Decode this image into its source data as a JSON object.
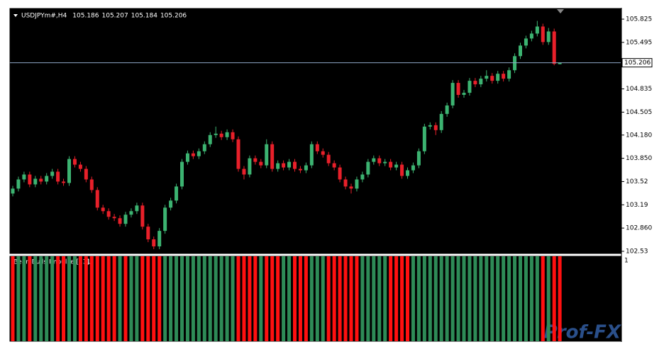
{
  "chart_data": {
    "type": "candlestick",
    "symbol": "USDJPYm#,H4",
    "ohlc": [
      [
        103.35,
        103.46,
        103.31,
        103.42
      ],
      [
        103.42,
        103.59,
        103.38,
        103.55
      ],
      [
        103.55,
        103.66,
        103.51,
        103.62
      ],
      [
        103.62,
        103.66,
        103.44,
        103.48
      ],
      [
        103.48,
        103.6,
        103.44,
        103.56
      ],
      [
        103.56,
        103.6,
        103.48,
        103.52
      ],
      [
        103.52,
        103.64,
        103.48,
        103.6
      ],
      [
        103.6,
        103.7,
        103.56,
        103.66
      ],
      [
        103.66,
        103.7,
        103.48,
        103.52
      ],
      [
        103.52,
        103.56,
        103.46,
        103.5
      ],
      [
        103.5,
        103.88,
        103.46,
        103.84
      ],
      [
        103.84,
        103.88,
        103.72,
        103.76
      ],
      [
        103.76,
        103.8,
        103.66,
        103.7
      ],
      [
        103.7,
        103.74,
        103.51,
        103.55
      ],
      [
        103.55,
        103.59,
        103.36,
        103.4
      ],
      [
        103.4,
        103.44,
        103.11,
        103.15
      ],
      [
        103.15,
        103.19,
        103.06,
        103.1
      ],
      [
        103.1,
        103.14,
        102.98,
        103.02
      ],
      [
        103.02,
        103.06,
        102.96,
        103.0
      ],
      [
        103.0,
        103.04,
        102.88,
        102.92
      ],
      [
        102.92,
        103.09,
        102.88,
        103.05
      ],
      [
        103.05,
        103.14,
        103.01,
        103.1
      ],
      [
        103.1,
        103.22,
        103.06,
        103.18
      ],
      [
        103.18,
        103.22,
        102.84,
        102.88
      ],
      [
        102.88,
        102.92,
        102.66,
        102.7
      ],
      [
        102.7,
        102.74,
        102.56,
        102.6
      ],
      [
        102.6,
        102.86,
        102.56,
        102.82
      ],
      [
        102.82,
        103.19,
        102.78,
        103.15
      ],
      [
        103.15,
        103.29,
        103.11,
        103.25
      ],
      [
        103.25,
        103.49,
        103.21,
        103.45
      ],
      [
        103.45,
        103.84,
        103.41,
        103.8
      ],
      [
        103.8,
        103.96,
        103.76,
        103.92
      ],
      [
        103.92,
        103.96,
        103.84,
        103.88
      ],
      [
        103.88,
        103.99,
        103.84,
        103.95
      ],
      [
        103.95,
        104.09,
        103.91,
        104.05
      ],
      [
        104.05,
        104.22,
        104.01,
        104.18
      ],
      [
        104.18,
        104.3,
        104.14,
        104.2
      ],
      [
        104.2,
        104.24,
        104.11,
        104.15
      ],
      [
        104.15,
        104.26,
        104.11,
        104.22
      ],
      [
        104.22,
        104.26,
        104.08,
        104.12
      ],
      [
        104.12,
        104.16,
        103.66,
        103.7
      ],
      [
        103.7,
        103.74,
        103.55,
        103.62
      ],
      [
        103.62,
        103.89,
        103.58,
        103.85
      ],
      [
        103.85,
        103.89,
        103.76,
        103.8
      ],
      [
        103.8,
        103.84,
        103.71,
        103.75
      ],
      [
        103.75,
        104.12,
        103.71,
        104.05
      ],
      [
        104.05,
        104.09,
        103.66,
        103.7
      ],
      [
        103.7,
        103.82,
        103.66,
        103.78
      ],
      [
        103.78,
        103.82,
        103.68,
        103.72
      ],
      [
        103.72,
        103.84,
        103.68,
        103.8
      ],
      [
        103.8,
        103.84,
        103.66,
        103.7
      ],
      [
        103.7,
        103.74,
        103.64,
        103.68
      ],
      [
        103.68,
        103.79,
        103.64,
        103.75
      ],
      [
        103.75,
        104.09,
        103.71,
        104.05
      ],
      [
        104.05,
        104.09,
        103.91,
        103.95
      ],
      [
        103.95,
        103.99,
        103.86,
        103.9
      ],
      [
        103.9,
        103.94,
        103.74,
        103.78
      ],
      [
        103.78,
        103.82,
        103.68,
        103.72
      ],
      [
        103.72,
        103.76,
        103.51,
        103.55
      ],
      [
        103.55,
        103.59,
        103.41,
        103.45
      ],
      [
        103.45,
        103.49,
        103.35,
        103.42
      ],
      [
        103.42,
        103.59,
        103.38,
        103.55
      ],
      [
        103.55,
        103.66,
        103.51,
        103.62
      ],
      [
        103.62,
        103.84,
        103.58,
        103.8
      ],
      [
        103.8,
        103.89,
        103.76,
        103.85
      ],
      [
        103.85,
        103.89,
        103.74,
        103.78
      ],
      [
        103.78,
        103.84,
        103.74,
        103.8
      ],
      [
        103.8,
        103.84,
        103.68,
        103.72
      ],
      [
        103.72,
        103.8,
        103.68,
        103.76
      ],
      [
        103.76,
        103.8,
        103.56,
        103.6
      ],
      [
        103.6,
        103.72,
        103.56,
        103.68
      ],
      [
        103.68,
        103.79,
        103.64,
        103.75
      ],
      [
        103.75,
        103.99,
        103.71,
        103.95
      ],
      [
        103.95,
        104.34,
        103.91,
        104.3
      ],
      [
        104.3,
        104.36,
        104.26,
        104.32
      ],
      [
        104.32,
        104.36,
        104.18,
        104.25
      ],
      [
        104.25,
        104.52,
        104.21,
        104.48
      ],
      [
        104.48,
        104.64,
        104.44,
        104.6
      ],
      [
        104.6,
        104.96,
        104.56,
        104.92
      ],
      [
        104.92,
        104.96,
        104.71,
        104.75
      ],
      [
        104.75,
        104.82,
        104.71,
        104.78
      ],
      [
        104.78,
        104.99,
        104.74,
        104.95
      ],
      [
        104.95,
        104.99,
        104.86,
        104.9
      ],
      [
        104.9,
        105.02,
        104.86,
        104.98
      ],
      [
        104.98,
        105.1,
        104.94,
        105.02
      ],
      [
        105.02,
        105.06,
        104.91,
        104.95
      ],
      [
        104.95,
        105.09,
        104.91,
        105.05
      ],
      [
        105.05,
        105.09,
        104.94,
        104.98
      ],
      [
        104.98,
        105.14,
        104.94,
        105.1
      ],
      [
        105.1,
        105.34,
        105.06,
        105.3
      ],
      [
        105.3,
        105.49,
        105.26,
        105.45
      ],
      [
        105.45,
        105.59,
        105.41,
        105.55
      ],
      [
        105.55,
        105.66,
        105.51,
        105.62
      ],
      [
        105.62,
        105.8,
        105.58,
        105.72
      ],
      [
        105.72,
        105.76,
        105.46,
        105.5
      ],
      [
        105.5,
        105.7,
        105.46,
        105.65
      ],
      [
        105.65,
        105.69,
        105.17,
        105.19
      ],
      [
        105.186,
        105.207,
        105.184,
        105.206
      ]
    ],
    "up_color": "#3cb371",
    "down_color": "#e8202a",
    "ylim": [
      102.5,
      105.976
    ],
    "yticks": [
      105.825,
      105.495,
      104.835,
      104.505,
      {
        "value": 104.18,
        "label": "104.180"
      },
      {
        "value": 103.85,
        "label": "103.850"
      },
      103.52,
      103.19,
      {
        "value": 102.86,
        "label": "102.860"
      },
      102.53
    ],
    "indicator": {
      "name": "BearsBulls Impulse [13]",
      "level_label": "1",
      "axis_label": "1",
      "ylim": [
        0,
        1
      ],
      "values": [
        1,
        1,
        1,
        1,
        1,
        1,
        1,
        1,
        1,
        1,
        1,
        1,
        1,
        1,
        1,
        1,
        1,
        1,
        1,
        1,
        1,
        1,
        1,
        1,
        1,
        1,
        1,
        1,
        1,
        1,
        1,
        1,
        1,
        1,
        1,
        1,
        1,
        1,
        1,
        1,
        1,
        1,
        1,
        1,
        1,
        1,
        1,
        1,
        1,
        1,
        1,
        1,
        1,
        1,
        1,
        1,
        1,
        1,
        1,
        1,
        1,
        1,
        1,
        1,
        1,
        1,
        1,
        1,
        1,
        1,
        1,
        1,
        1,
        1,
        1,
        1,
        1,
        1,
        1,
        1,
        1,
        1,
        1,
        1,
        1,
        1,
        1,
        1,
        1,
        1,
        1,
        1,
        1,
        1,
        1,
        1,
        1,
        1
      ],
      "colors": [
        "#ff1010",
        "#2e8b57",
        "#2e8b57",
        "#ff1010",
        "#2e8b57",
        "#2e8b57",
        "#2e8b57",
        "#2e8b57",
        "#ff1010",
        "#ff1010",
        "#2e8b57",
        "#2e8b57",
        "#ff1010",
        "#ff1010",
        "#ff1010",
        "#ff1010",
        "#ff1010",
        "#ff1010",
        "#ff1010",
        "#2e8b57",
        "#ff1010",
        "#2e8b57",
        "#2e8b57",
        "#ff1010",
        "#ff1010",
        "#ff1010",
        "#ff1010",
        "#2e8b57",
        "#2e8b57",
        "#2e8b57",
        "#2e8b57",
        "#2e8b57",
        "#2e8b57",
        "#2e8b57",
        "#2e8b57",
        "#2e8b57",
        "#2e8b57",
        "#2e8b57",
        "#2e8b57",
        "#2e8b57",
        "#ff1010",
        "#ff1010",
        "#ff1010",
        "#ff1010",
        "#2e8b57",
        "#ff1010",
        "#ff1010",
        "#ff1010",
        "#2e8b57",
        "#2e8b57",
        "#ff1010",
        "#ff1010",
        "#ff1010",
        "#2e8b57",
        "#2e8b57",
        "#2e8b57",
        "#ff1010",
        "#ff1010",
        "#ff1010",
        "#ff1010",
        "#ff1010",
        "#ff1010",
        "#2e8b57",
        "#2e8b57",
        "#2e8b57",
        "#2e8b57",
        "#2e8b57",
        "#ff1010",
        "#ff1010",
        "#ff1010",
        "#ff1010",
        "#2e8b57",
        "#2e8b57",
        "#2e8b57",
        "#2e8b57",
        "#2e8b57",
        "#2e8b57",
        "#2e8b57",
        "#2e8b57",
        "#2e8b57",
        "#2e8b57",
        "#2e8b57",
        "#2e8b57",
        "#2e8b57",
        "#2e8b57",
        "#2e8b57",
        "#2e8b57",
        "#2e8b57",
        "#2e8b57",
        "#2e8b57",
        "#2e8b57",
        "#2e8b57",
        "#2e8b57",
        "#2e8b57",
        "#ff1010",
        "#2e8b57",
        "#ff1010",
        "#ff1010"
      ]
    },
    "watermark": "Prof-FX"
  }
}
